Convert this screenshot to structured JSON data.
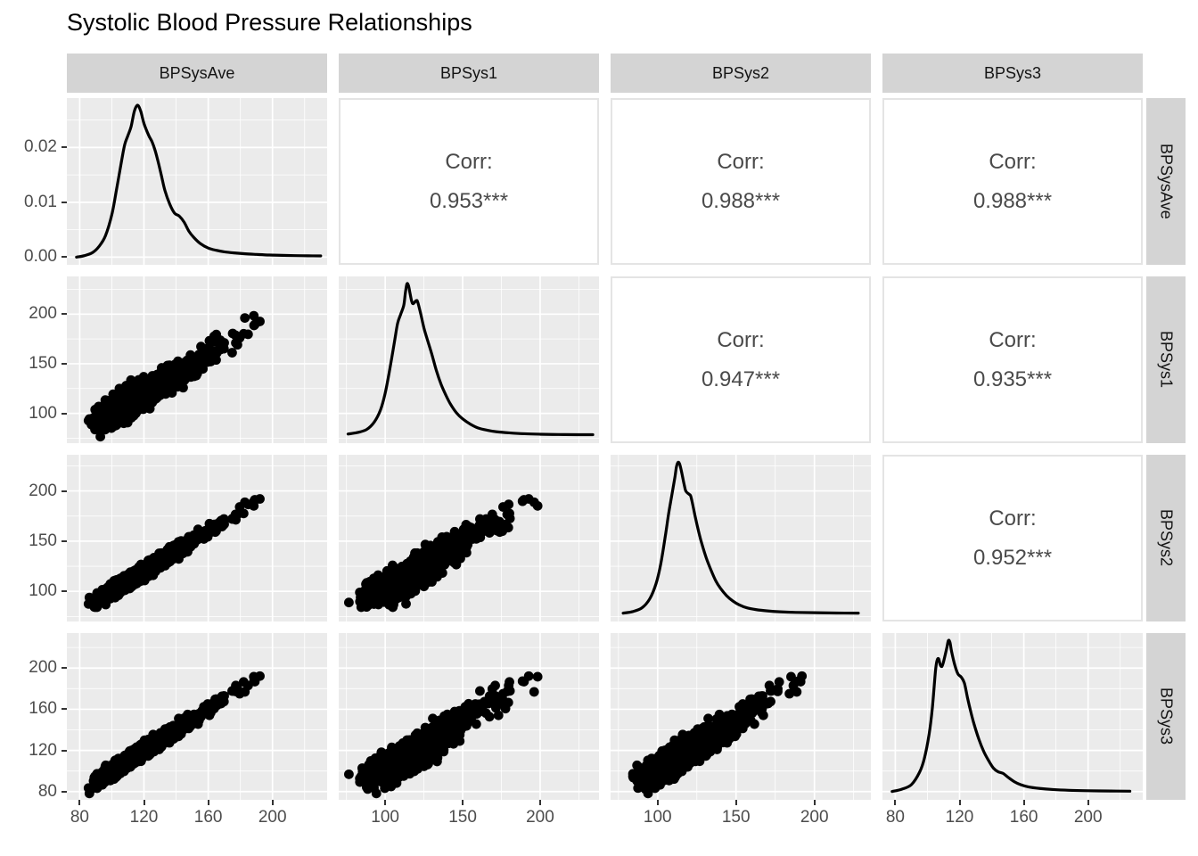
{
  "title": "Systolic Blood Pressure Relationships",
  "colors": {
    "background": "#FFFFFF",
    "title_text": "#000000",
    "panel_bg": "#EBEBEB",
    "gridline": "#FFFFFF",
    "strip_bg": "#D4D4D4",
    "strip_text": "#141414",
    "axis_text": "#4D4D4D",
    "tick_mark": "#333333",
    "corr_text": "#4A4A4A",
    "corr_border": "#E4E4E4",
    "density_line": "#000000",
    "scatter_point": "#000000"
  },
  "chart_data": {
    "type": "scatter-matrix",
    "title": "Systolic Blood Pressure Relationships",
    "variables": [
      "BPSysAve",
      "BPSys1",
      "BPSys2",
      "BPSys3"
    ],
    "layout": {
      "diagonal": "density",
      "upper": "correlation-text",
      "lower": "scatter",
      "grid": true,
      "column_strips_top": true,
      "row_strips_right": true
    },
    "corr_label": "Corr:",
    "correlations": [
      {
        "row": 0,
        "col": 1,
        "pair": "BPSysAve~BPSys1",
        "r": 0.953,
        "display": "0.953***"
      },
      {
        "row": 0,
        "col": 2,
        "pair": "BPSysAve~BPSys2",
        "r": 0.988,
        "display": "0.988***"
      },
      {
        "row": 0,
        "col": 3,
        "pair": "BPSysAve~BPSys3",
        "r": 0.988,
        "display": "0.988***"
      },
      {
        "row": 1,
        "col": 2,
        "pair": "BPSys1~BPSys2",
        "r": 0.947,
        "display": "0.947***"
      },
      {
        "row": 1,
        "col": 3,
        "pair": "BPSys1~BPSys3",
        "r": 0.935,
        "display": "0.935***"
      },
      {
        "row": 2,
        "col": 3,
        "pair": "BPSys2~BPSys3",
        "r": 0.952,
        "display": "0.952***"
      }
    ],
    "axes": {
      "BPSysAve": {
        "domain": [
          72,
          234
        ],
        "ticks": [
          80,
          120,
          160,
          200
        ],
        "minor": [
          100,
          140,
          180,
          220
        ]
      },
      "BPSys1": {
        "domain": [
          70,
          238
        ],
        "ticks": [
          100,
          150,
          200
        ],
        "minor": [
          75,
          125,
          175,
          225
        ]
      },
      "BPSys2": {
        "domain": [
          70,
          236
        ],
        "ticks": [
          100,
          150,
          200
        ],
        "minor": [
          75,
          125,
          175,
          225
        ]
      },
      "BPSys3": {
        "domain": [
          72,
          234
        ],
        "ticks": [
          80,
          120,
          160,
          200
        ],
        "minor": [
          100,
          140,
          180,
          220
        ]
      }
    },
    "density_axis": {
      "domain": [
        -0.0014,
        0.029
      ],
      "tick_values": [
        0.0,
        0.01,
        0.02
      ],
      "tick_labels": [
        "0.00",
        "0.01",
        "0.02"
      ],
      "minor": [
        0.005,
        0.015,
        0.025
      ],
      "peak_density": 0.0277
    },
    "densities": {
      "BPSysAve": [
        [
          78,
          0.0
        ],
        [
          83,
          0.01
        ],
        [
          88,
          0.03
        ],
        [
          92,
          0.07
        ],
        [
          96,
          0.14
        ],
        [
          100,
          0.28
        ],
        [
          103,
          0.45
        ],
        [
          106,
          0.63
        ],
        [
          108,
          0.74
        ],
        [
          110,
          0.8
        ],
        [
          112,
          0.86
        ],
        [
          114,
          0.96
        ],
        [
          116,
          1.0
        ],
        [
          118,
          0.96
        ],
        [
          120,
          0.88
        ],
        [
          123,
          0.8
        ],
        [
          125,
          0.76
        ],
        [
          127,
          0.7
        ],
        [
          129,
          0.62
        ],
        [
          131,
          0.53
        ],
        [
          133,
          0.44
        ],
        [
          136,
          0.35
        ],
        [
          139,
          0.29
        ],
        [
          142,
          0.27
        ],
        [
          145,
          0.23
        ],
        [
          148,
          0.17
        ],
        [
          151,
          0.13
        ],
        [
          155,
          0.09
        ],
        [
          160,
          0.06
        ],
        [
          165,
          0.045
        ],
        [
          170,
          0.035
        ],
        [
          176,
          0.028
        ],
        [
          183,
          0.022
        ],
        [
          190,
          0.018
        ],
        [
          198,
          0.014
        ],
        [
          206,
          0.012
        ],
        [
          214,
          0.01
        ],
        [
          222,
          0.009
        ],
        [
          230,
          0.008
        ]
      ],
      "BPSys1": [
        [
          76,
          0.01
        ],
        [
          82,
          0.02
        ],
        [
          88,
          0.04
        ],
        [
          93,
          0.09
        ],
        [
          97,
          0.17
        ],
        [
          100,
          0.28
        ],
        [
          103,
          0.44
        ],
        [
          106,
          0.62
        ],
        [
          108,
          0.74
        ],
        [
          110,
          0.8
        ],
        [
          112,
          0.86
        ],
        [
          113,
          0.94
        ],
        [
          114,
          1.0
        ],
        [
          115,
          0.99
        ],
        [
          116,
          0.94
        ],
        [
          117,
          0.89
        ],
        [
          118,
          0.87
        ],
        [
          120,
          0.89
        ],
        [
          121,
          0.88
        ],
        [
          123,
          0.8
        ],
        [
          125,
          0.71
        ],
        [
          127,
          0.64
        ],
        [
          130,
          0.54
        ],
        [
          133,
          0.43
        ],
        [
          136,
          0.34
        ],
        [
          139,
          0.27
        ],
        [
          142,
          0.21
        ],
        [
          146,
          0.15
        ],
        [
          150,
          0.11
        ],
        [
          155,
          0.075
        ],
        [
          160,
          0.05
        ],
        [
          166,
          0.035
        ],
        [
          172,
          0.025
        ],
        [
          180,
          0.018
        ],
        [
          190,
          0.012
        ],
        [
          200,
          0.009
        ],
        [
          212,
          0.007
        ],
        [
          224,
          0.006
        ],
        [
          234,
          0.006
        ]
      ],
      "BPSys2": [
        [
          78,
          0.005
        ],
        [
          84,
          0.015
        ],
        [
          90,
          0.04
        ],
        [
          95,
          0.1
        ],
        [
          99,
          0.2
        ],
        [
          102,
          0.33
        ],
        [
          105,
          0.52
        ],
        [
          107,
          0.66
        ],
        [
          109,
          0.78
        ],
        [
          111,
          0.9
        ],
        [
          112,
          0.97
        ],
        [
          113,
          1.0
        ],
        [
          114,
          0.99
        ],
        [
          115,
          0.95
        ],
        [
          116,
          0.9
        ],
        [
          117,
          0.85
        ],
        [
          118,
          0.81
        ],
        [
          120,
          0.79
        ],
        [
          121,
          0.78
        ],
        [
          122,
          0.74
        ],
        [
          124,
          0.64
        ],
        [
          126,
          0.55
        ],
        [
          128,
          0.47
        ],
        [
          131,
          0.37
        ],
        [
          134,
          0.29
        ],
        [
          137,
          0.22
        ],
        [
          140,
          0.17
        ],
        [
          144,
          0.12
        ],
        [
          148,
          0.085
        ],
        [
          152,
          0.06
        ],
        [
          157,
          0.04
        ],
        [
          163,
          0.028
        ],
        [
          170,
          0.02
        ],
        [
          178,
          0.014
        ],
        [
          188,
          0.01
        ],
        [
          200,
          0.008
        ],
        [
          214,
          0.006
        ],
        [
          228,
          0.005
        ]
      ],
      "BPSys3": [
        [
          78,
          0.005
        ],
        [
          84,
          0.02
        ],
        [
          90,
          0.05
        ],
        [
          95,
          0.13
        ],
        [
          98,
          0.22
        ],
        [
          101,
          0.38
        ],
        [
          103,
          0.55
        ],
        [
          105,
          0.8
        ],
        [
          106,
          0.87
        ],
        [
          107,
          0.88
        ],
        [
          108,
          0.84
        ],
        [
          109,
          0.83
        ],
        [
          110,
          0.86
        ],
        [
          112,
          0.95
        ],
        [
          113,
          1.0
        ],
        [
          114,
          0.99
        ],
        [
          115,
          0.93
        ],
        [
          117,
          0.84
        ],
        [
          119,
          0.78
        ],
        [
          121,
          0.76
        ],
        [
          123,
          0.72
        ],
        [
          125,
          0.62
        ],
        [
          127,
          0.53
        ],
        [
          129,
          0.45
        ],
        [
          132,
          0.35
        ],
        [
          135,
          0.27
        ],
        [
          138,
          0.21
        ],
        [
          141,
          0.16
        ],
        [
          144,
          0.135
        ],
        [
          147,
          0.125
        ],
        [
          150,
          0.1
        ],
        [
          154,
          0.07
        ],
        [
          158,
          0.05
        ],
        [
          163,
          0.035
        ],
        [
          170,
          0.025
        ],
        [
          178,
          0.018
        ],
        [
          188,
          0.013
        ],
        [
          200,
          0.01
        ],
        [
          214,
          0.008
        ],
        [
          226,
          0.007
        ]
      ]
    },
    "scatter": {
      "n_points": 1500,
      "seed": 20240913,
      "point_radius": 5.4,
      "base_center": 113,
      "base_spread": 14.5,
      "base_skew": 0.42,
      "noise_sd": {
        "BPSys1": 5.8,
        "BPSys2": 4.6,
        "BPSys3": 4.6
      },
      "value_range": [
        76,
        232
      ]
    }
  }
}
